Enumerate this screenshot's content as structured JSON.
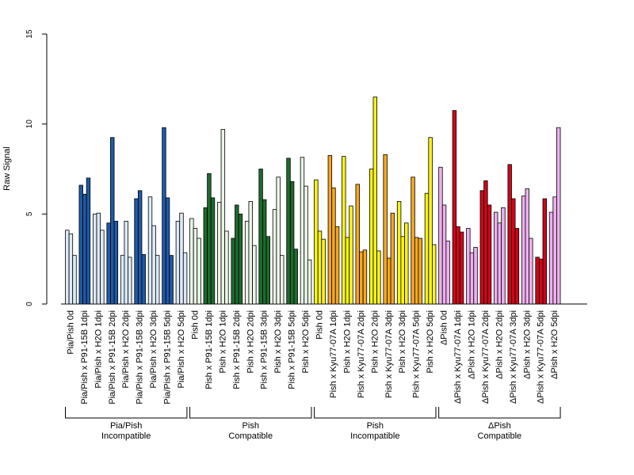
{
  "chart_data": {
    "type": "bar",
    "title": "",
    "xlabel": "",
    "ylabel": "Raw Signal",
    "ylim": [
      0,
      15
    ],
    "yticks": [
      0,
      5,
      10,
      15
    ],
    "grid": false,
    "legend": "none",
    "colors": {
      "light_blue": "#dce9f7",
      "dark_blue": "#1f5aa6",
      "light_green": "#eaf5e6",
      "dark_green": "#1e6b2c",
      "yellow": "#f9f317",
      "orange": "#f5a81e",
      "pink": "#eeb0ee",
      "red": "#d0061a"
    },
    "categories": [
      {
        "label": "Pia/Pish 0d",
        "color": "light_blue",
        "values": [
          4.1,
          3.9,
          2.7
        ]
      },
      {
        "label": "Pia/Pish x P91-15B 1dpi",
        "color": "dark_blue",
        "values": [
          6.6,
          6.1,
          7.0
        ]
      },
      {
        "label": "Pia/Pish x H2O 1dpi",
        "color": "light_blue",
        "values": [
          5.0,
          5.05,
          4.1
        ]
      },
      {
        "label": "Pia/Pish x P91-15B 2dpi",
        "color": "dark_blue",
        "values": [
          4.5,
          9.25,
          4.6
        ]
      },
      {
        "label": "Pia/Pish x H2O 2dpi",
        "color": "light_blue",
        "values": [
          2.7,
          4.6,
          2.6
        ]
      },
      {
        "label": "Pia/Pish x P91-15B 3dpi",
        "color": "dark_blue",
        "values": [
          5.85,
          6.3,
          2.75
        ]
      },
      {
        "label": "Pia/Pish x H2O 3dpi",
        "color": "light_blue",
        "values": [
          5.95,
          4.35,
          2.7
        ]
      },
      {
        "label": "Pia/Pish x P91-15B 5dpi",
        "color": "dark_blue",
        "values": [
          9.8,
          5.9,
          2.7
        ]
      },
      {
        "label": "Pia/Pish x H2O 5dpi",
        "color": "light_blue",
        "values": [
          4.6,
          5.05,
          2.85
        ]
      },
      {
        "label": "Pish 0d",
        "color": "light_green",
        "values": [
          4.75,
          4.2,
          3.65
        ]
      },
      {
        "label": "Pish x P91-15B 1dpi",
        "color": "dark_green",
        "values": [
          5.35,
          7.25,
          5.9
        ]
      },
      {
        "label": "Pish x H2O 1dpi",
        "color": "light_green",
        "values": [
          5.65,
          9.7,
          4.05
        ]
      },
      {
        "label": "Pish x P91-15B 2dpi",
        "color": "dark_green",
        "values": [
          3.65,
          5.5,
          5.0
        ]
      },
      {
        "label": "Pish x H2O 2dpi",
        "color": "light_green",
        "values": [
          4.6,
          5.7,
          3.25
        ]
      },
      {
        "label": "Pish x P91-15B 3dpi",
        "color": "dark_green",
        "values": [
          7.5,
          5.8,
          3.75
        ]
      },
      {
        "label": "Pish x H2O 3dpi",
        "color": "light_green",
        "values": [
          5.25,
          7.05,
          2.7
        ]
      },
      {
        "label": "Pish x P91-15B 5dpi",
        "color": "dark_green",
        "values": [
          8.1,
          6.8,
          3.05
        ]
      },
      {
        "label": "Pish x H2O 5dpi",
        "color": "light_green",
        "values": [
          8.15,
          6.55,
          2.45
        ]
      },
      {
        "label": "Pish 0d",
        "color": "yellow",
        "values": [
          6.9,
          4.05,
          3.6
        ]
      },
      {
        "label": "Pish x Kyu77-07A 1dpi",
        "color": "orange",
        "values": [
          8.25,
          6.45,
          4.3
        ]
      },
      {
        "label": "Pish x H2O 1dpi",
        "color": "yellow",
        "values": [
          8.2,
          3.7,
          5.45
        ]
      },
      {
        "label": "Pish x Kyu77-07A 2dpi",
        "color": "orange",
        "values": [
          6.65,
          2.9,
          3.0
        ]
      },
      {
        "label": "Pish x H2O 2dpi",
        "color": "yellow",
        "values": [
          7.5,
          11.5,
          2.95
        ]
      },
      {
        "label": "Pish x Kyu77-07A 3dpi",
        "color": "orange",
        "values": [
          8.3,
          2.55,
          5.05
        ]
      },
      {
        "label": "Pish x H2O 3dpi",
        "color": "yellow",
        "values": [
          5.7,
          3.75,
          4.5
        ]
      },
      {
        "label": "Pish x Kyu77-07A 5dpi",
        "color": "orange",
        "values": [
          7.05,
          3.7,
          3.65
        ]
      },
      {
        "label": "Pish x H2O 5dpi",
        "color": "yellow",
        "values": [
          6.15,
          9.25,
          3.3
        ]
      },
      {
        "label": "ΔPish 0d",
        "color": "pink",
        "values": [
          7.6,
          5.5,
          3.5
        ]
      },
      {
        "label": "ΔPish x Kyu77-07A 1dpi",
        "color": "red",
        "values": [
          10.75,
          4.3,
          4.0
        ]
      },
      {
        "label": "ΔPish x H2O 1dpi",
        "color": "pink",
        "values": [
          4.2,
          2.85,
          3.15
        ]
      },
      {
        "label": "ΔPish x Kyu77-07A 2dpi",
        "color": "red",
        "values": [
          6.3,
          6.85,
          5.5
        ]
      },
      {
        "label": "ΔPish x H2O 2dpi",
        "color": "pink",
        "values": [
          5.1,
          4.5,
          5.35
        ]
      },
      {
        "label": "ΔPish x Kyu77-07A 3dpi",
        "color": "red",
        "values": [
          7.75,
          5.85,
          4.2
        ]
      },
      {
        "label": "ΔPish x H2O 3dpi",
        "color": "pink",
        "values": [
          6.0,
          6.4,
          3.65
        ]
      },
      {
        "label": "ΔPish x Kyu77-07A 5dpi",
        "color": "red",
        "values": [
          2.6,
          2.5,
          5.85
        ]
      },
      {
        "label": "ΔPish x H2O 5dpi",
        "color": "pink",
        "values": [
          5.1,
          5.95,
          9.8
        ]
      }
    ],
    "groups": [
      {
        "line1": "Pia/Pish",
        "line2": "Incompatible",
        "start": 0,
        "end": 8
      },
      {
        "line1": "Pish",
        "line2": "Compatible",
        "start": 9,
        "end": 17
      },
      {
        "line1": "Pish",
        "line2": "Incompatible",
        "start": 18,
        "end": 26
      },
      {
        "line1": "ΔPish",
        "line2": "Compatible",
        "start": 27,
        "end": 35
      }
    ]
  }
}
